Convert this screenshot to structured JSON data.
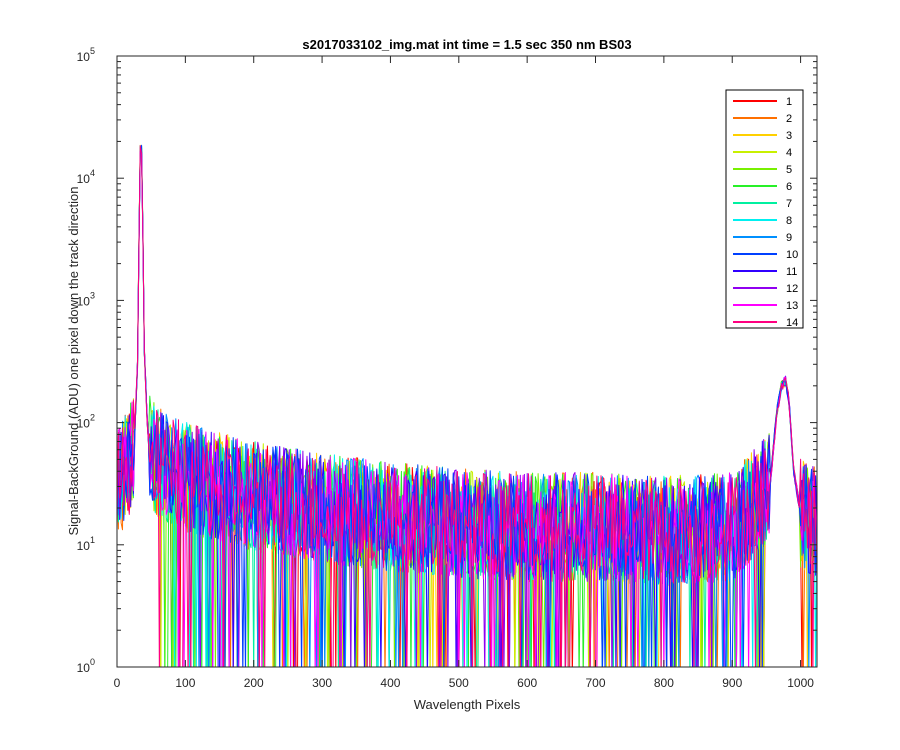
{
  "chart_data": {
    "type": "line",
    "title": "s2017033102_img.mat int time = 1.5 sec  350 nm BS03",
    "xlabel": "Wavelength Pixels",
    "ylabel": "Signal-BackGround (ADU) one pixel down the track direction",
    "xlim": [
      0,
      1024
    ],
    "ylim": [
      1,
      100000
    ],
    "yscale": "log",
    "grid": false,
    "legend_position": "top-right",
    "x_ticks": [
      "0",
      "100",
      "200",
      "300",
      "400",
      "500",
      "600",
      "700",
      "800",
      "900",
      "1000"
    ],
    "y_ticks": [
      {
        "base": "10",
        "exp": "0"
      },
      {
        "base": "10",
        "exp": "1"
      },
      {
        "base": "10",
        "exp": "2"
      },
      {
        "base": "10",
        "exp": "3"
      },
      {
        "base": "10",
        "exp": "4"
      },
      {
        "base": "10",
        "exp": "5"
      }
    ],
    "profile": {
      "x": [
        0,
        15,
        25,
        30,
        33,
        35,
        37,
        40,
        45,
        55,
        80,
        120,
        200,
        300,
        400,
        500,
        600,
        700,
        800,
        900,
        955,
        965,
        972,
        978,
        983,
        990,
        1000,
        1024
      ],
      "y": [
        30,
        45,
        60,
        300,
        8000,
        36000,
        8000,
        400,
        80,
        50,
        40,
        33,
        25,
        20,
        17,
        15,
        14,
        14,
        13,
        14,
        30,
        120,
        200,
        220,
        150,
        40,
        18,
        15
      ]
    },
    "series": [
      {
        "name": "1",
        "color": "#ff0000"
      },
      {
        "name": "2",
        "color": "#ff7000"
      },
      {
        "name": "3",
        "color": "#ffd000"
      },
      {
        "name": "4",
        "color": "#c8f000"
      },
      {
        "name": "5",
        "color": "#78f000"
      },
      {
        "name": "6",
        "color": "#28f028"
      },
      {
        "name": "7",
        "color": "#00f0a0"
      },
      {
        "name": "8",
        "color": "#00f0f0"
      },
      {
        "name": "9",
        "color": "#0090ff"
      },
      {
        "name": "10",
        "color": "#0040ff"
      },
      {
        "name": "11",
        "color": "#3000ff"
      },
      {
        "name": "12",
        "color": "#9000f0"
      },
      {
        "name": "13",
        "color": "#ff00ff"
      },
      {
        "name": "14",
        "color": "#ff0080"
      }
    ]
  }
}
